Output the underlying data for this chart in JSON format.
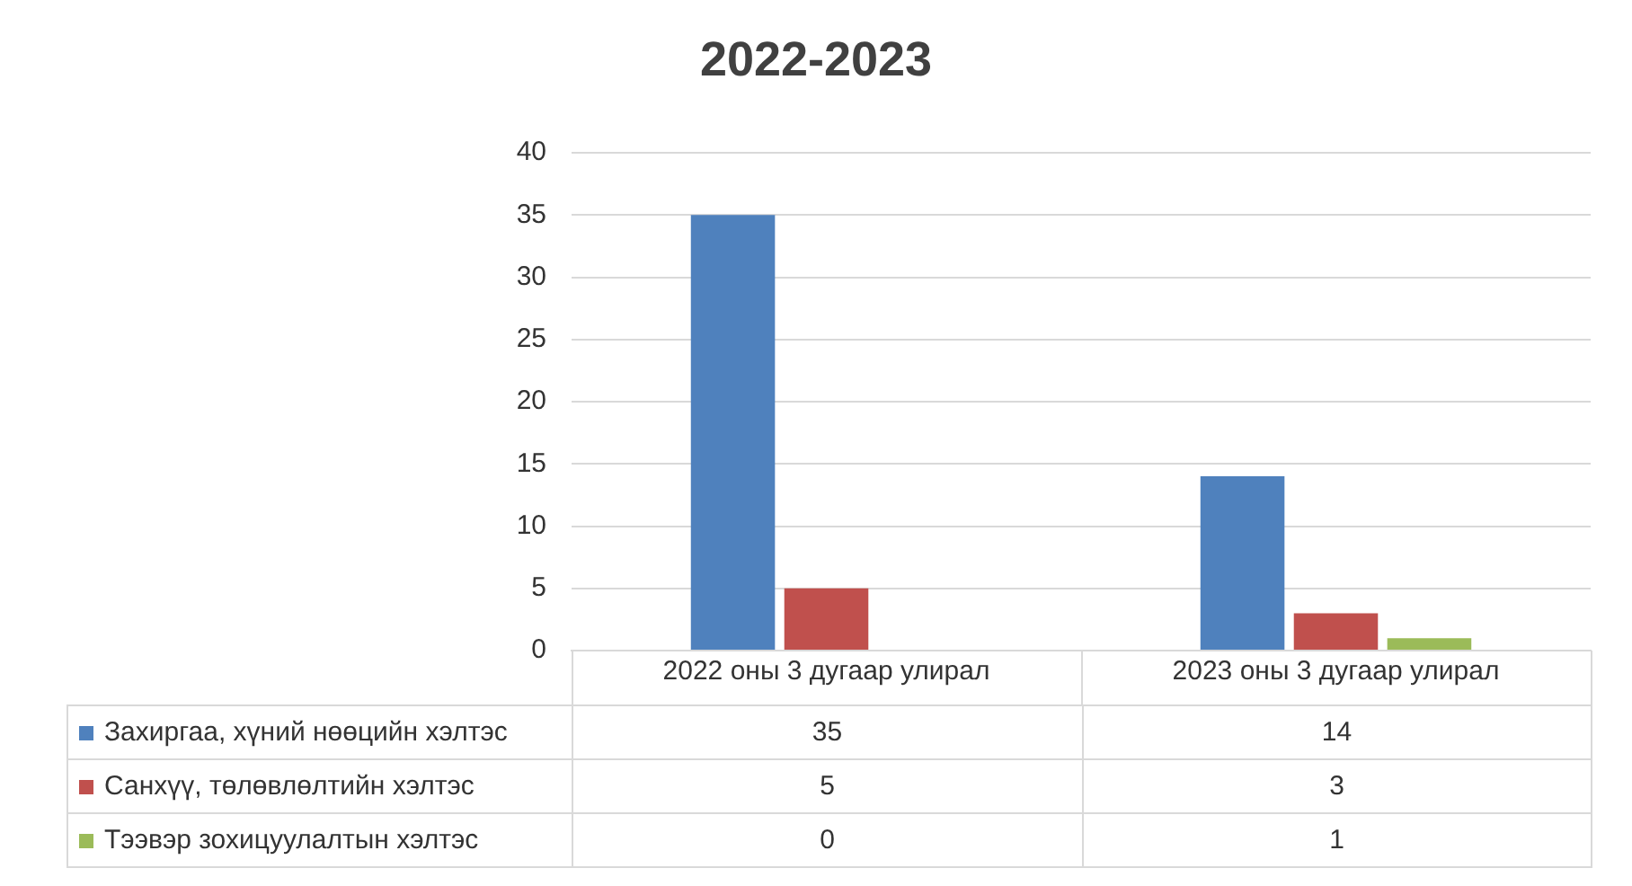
{
  "chart_data": {
    "type": "bar",
    "title": "2022-2023",
    "categories": [
      "2022 оны 3 дугаар улирал",
      "2023 оны 3 дугаар улирал"
    ],
    "series": [
      {
        "name": "Захиргаа, хүний нөөцийн хэлтэс",
        "color": "#4f81bd",
        "values": [
          35,
          14
        ]
      },
      {
        "name": "Санхүү, төлөвлөлтийн хэлтэс",
        "color": "#c0504d",
        "values": [
          5,
          3
        ]
      },
      {
        "name": "Тээвэр зохицуулалтын хэлтэс",
        "color": "#9bbb59",
        "values": [
          0,
          1
        ]
      }
    ],
    "ylim": [
      0,
      40
    ],
    "yticks": [
      0,
      5,
      10,
      15,
      20,
      25,
      30,
      35,
      40
    ],
    "grid": "y",
    "legend": "bottom left",
    "data_labels": true
  }
}
